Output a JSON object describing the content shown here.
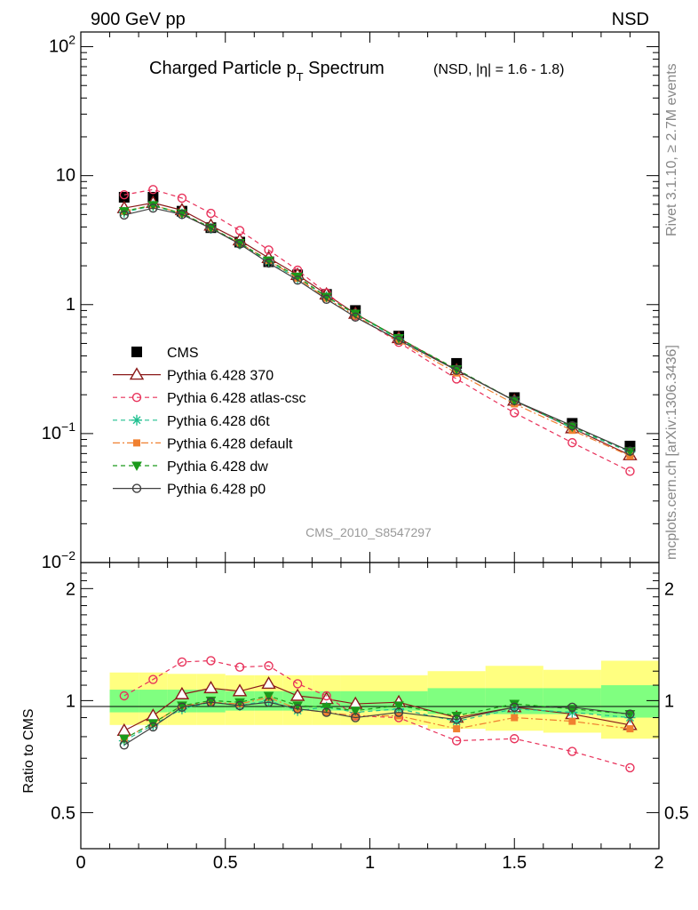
{
  "header": {
    "left": "900 GeV pp",
    "right": "NSD",
    "rivet": "Rivet 3.1.10, ≥ 2.7M events",
    "mcplots": "mcplots.cern.ch [arXiv:1306.3436]",
    "analysis": "CMS_2010_S8547297"
  },
  "title": {
    "main": "Charged Particle p",
    "sub": "T",
    "main2": " Spectrum",
    "extra": "(NSD, |η| = 1.6 - 1.8)"
  },
  "ratio_ylabel": "Ratio to CMS",
  "colors": {
    "CMS": "#000000",
    "370": "#8b1a1a",
    "atlas": "#e8315a",
    "d6t": "#20c090",
    "default": "#f08030",
    "dw": "#1a9a1a",
    "p0": "#404040",
    "band_inner": "#80ff80",
    "band_outer": "#ffff80"
  },
  "chart_data": [
    {
      "type": "scatter",
      "panel": "main",
      "yscale": "log",
      "xlim": [
        0,
        2
      ],
      "ylim": [
        0.01,
        130
      ],
      "ytick_labels": [
        "10^-2",
        "10^-1",
        "1",
        "10",
        "10^2"
      ],
      "x": [
        0.15,
        0.25,
        0.35,
        0.45,
        0.55,
        0.65,
        0.75,
        0.85,
        0.95,
        1.1,
        1.3,
        1.5,
        1.7,
        1.9
      ],
      "series": [
        {
          "name": "CMS",
          "key": "CMS",
          "marker": "square",
          "values": [
            6.8,
            6.8,
            5.3,
            3.95,
            3.05,
            2.15,
            1.7,
            1.2,
            0.9,
            0.57,
            0.35,
            0.19,
            0.12,
            0.08
          ]
        },
        {
          "name": "Pythia 6.428 370",
          "key": "370",
          "marker": "triangle",
          "dash": "",
          "values": [
            5.6,
            6.15,
            5.4,
            4.1,
            3.15,
            2.3,
            1.7,
            1.2,
            0.85,
            0.55,
            0.31,
            0.18,
            0.11,
            0.068
          ]
        },
        {
          "name": "Pythia 6.428 atlas-csc",
          "key": "atlas",
          "marker": "circle",
          "dash": "5,4",
          "values": [
            7.1,
            7.8,
            6.7,
            5.1,
            3.75,
            2.65,
            1.85,
            1.23,
            0.82,
            0.51,
            0.265,
            0.145,
            0.085,
            0.051
          ]
        },
        {
          "name": "Pythia 6.428 d6t",
          "key": "d6t",
          "marker": "star",
          "dash": "5,4",
          "values": [
            5.2,
            5.85,
            5.05,
            3.9,
            2.95,
            2.15,
            1.6,
            1.15,
            0.84,
            0.54,
            0.31,
            0.18,
            0.11,
            0.072
          ]
        },
        {
          "name": "Pythia 6.428 default",
          "key": "default",
          "marker": "square-small",
          "dash": "8,3,2,3",
          "values": [
            5.3,
            5.9,
            5.1,
            3.9,
            3.0,
            2.2,
            1.6,
            1.12,
            0.82,
            0.52,
            0.295,
            0.17,
            0.106,
            0.067
          ]
        },
        {
          "name": "Pythia 6.428 dw",
          "key": "dw",
          "marker": "triangle-down",
          "dash": "5,4",
          "values": [
            5.3,
            5.9,
            5.1,
            3.95,
            3.0,
            2.2,
            1.65,
            1.15,
            0.85,
            0.55,
            0.315,
            0.18,
            0.113,
            0.073
          ]
        },
        {
          "name": "Pythia 6.428 p0",
          "key": "p0",
          "marker": "circle",
          "dash": "",
          "values": [
            4.95,
            5.6,
            5.0,
            3.9,
            2.95,
            2.1,
            1.55,
            1.1,
            0.8,
            0.53,
            0.31,
            0.18,
            0.115,
            0.073
          ]
        }
      ]
    },
    {
      "type": "line",
      "panel": "ratio",
      "ylabel": "Ratio to CMS",
      "yscale": "log",
      "xlim": [
        0,
        2
      ],
      "ylim": [
        0.4,
        2.35
      ],
      "xtick_labels": [
        "0",
        "0.5",
        "1",
        "1.5",
        "2"
      ],
      "ytick_labels": [
        "0.5",
        "1",
        "2"
      ],
      "bands": {
        "edges": [
          0.1,
          0.2,
          0.3,
          0.4,
          0.5,
          0.6,
          0.7,
          0.8,
          0.9,
          1.0,
          1.2,
          1.4,
          1.6,
          1.8,
          2.0
        ],
        "inner_low": [
          0.93,
          0.93,
          0.93,
          0.93,
          0.94,
          0.94,
          0.94,
          0.94,
          0.94,
          0.94,
          0.92,
          0.92,
          0.92,
          0.9
        ],
        "inner_high": [
          1.07,
          1.07,
          1.07,
          1.07,
          1.06,
          1.06,
          1.06,
          1.06,
          1.06,
          1.06,
          1.08,
          1.08,
          1.08,
          1.1
        ],
        "outer_low": [
          0.86,
          0.86,
          0.86,
          0.86,
          0.86,
          0.86,
          0.86,
          0.86,
          0.86,
          0.86,
          0.84,
          0.83,
          0.82,
          0.79
        ],
        "outer_high": [
          1.19,
          1.19,
          1.18,
          1.18,
          1.17,
          1.17,
          1.17,
          1.17,
          1.17,
          1.17,
          1.2,
          1.24,
          1.21,
          1.28
        ]
      },
      "x": [
        0.15,
        0.25,
        0.35,
        0.45,
        0.55,
        0.65,
        0.75,
        0.85,
        0.95,
        1.1,
        1.3,
        1.5,
        1.7,
        1.9
      ],
      "series": [
        {
          "key": "370",
          "marker": "triangle",
          "dash": "",
          "values": [
            0.83,
            0.91,
            1.04,
            1.08,
            1.06,
            1.11,
            1.03,
            1.01,
            0.98,
            0.99,
            0.9,
            0.96,
            0.92,
            0.86
          ]
        },
        {
          "key": "atlas",
          "marker": "circle",
          "dash": "5,4",
          "values": [
            1.03,
            1.14,
            1.27,
            1.28,
            1.23,
            1.24,
            1.11,
            1.03,
            0.91,
            0.9,
            0.78,
            0.79,
            0.73,
            0.66
          ]
        },
        {
          "key": "d6t",
          "marker": "star",
          "dash": "5,4",
          "values": [
            0.78,
            0.86,
            0.95,
            0.99,
            0.97,
            1.0,
            0.94,
            0.96,
            0.93,
            0.95,
            0.88,
            0.95,
            0.93,
            0.9
          ]
        },
        {
          "key": "default",
          "marker": "square-small",
          "dash": "8,3,2,3",
          "values": [
            0.79,
            0.87,
            0.97,
            0.99,
            0.98,
            1.02,
            0.95,
            0.93,
            0.91,
            0.91,
            0.84,
            0.9,
            0.88,
            0.84
          ]
        },
        {
          "key": "dw",
          "marker": "triangle-down",
          "dash": "5,4",
          "values": [
            0.79,
            0.87,
            0.97,
            1.0,
            0.99,
            1.03,
            0.97,
            0.96,
            0.94,
            0.97,
            0.91,
            0.98,
            0.95,
            0.92
          ]
        },
        {
          "key": "p0",
          "marker": "circle",
          "dash": "",
          "values": [
            0.76,
            0.85,
            0.96,
            0.99,
            0.97,
            0.99,
            0.95,
            0.93,
            0.9,
            0.93,
            0.89,
            0.96,
            0.96,
            0.92
          ]
        }
      ]
    }
  ]
}
